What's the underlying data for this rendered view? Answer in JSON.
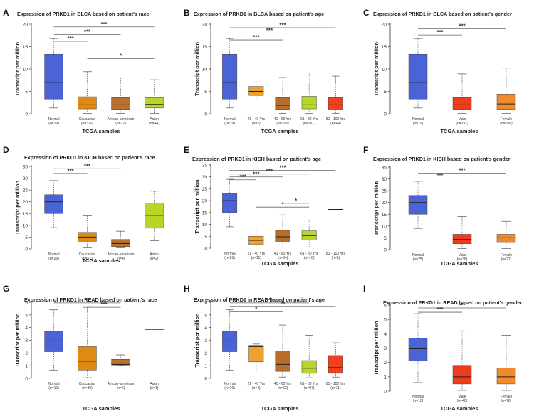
{
  "colors": {
    "normal": "#4a64d8",
    "caucasian": "#e08a16",
    "african_american": "#b8722d",
    "asian": "#b8d624",
    "age_21_40": "#f0a030",
    "age_41_60": "#b56e2c",
    "age_61_80": "#b5d62a",
    "age_81_100": "#f0401c",
    "male": "#f03c1e",
    "female": "#f08a2c",
    "whisker": "#555555",
    "median": "#222222",
    "signif": "#666666",
    "axis": "#333333"
  },
  "chart_data": [
    {
      "id": "A",
      "panel_label": "A",
      "type": "box",
      "title": "Expression of PRKD1 in BLCA based on patient's race",
      "xlabel": "TCGA samples",
      "ylabel": "Transcript per million",
      "ylim": [
        0,
        20
      ],
      "yticks": [
        "0",
        "5",
        "10",
        "15",
        "20"
      ],
      "categories": [
        {
          "name": "Normal",
          "n": "(n=19)",
          "color": "#4a64d8",
          "min": 1.3,
          "q1": 3.3,
          "median": 7.0,
          "q3": 13.3,
          "max": 16.8
        },
        {
          "name": "Caucasian",
          "n": "(n=320)",
          "color": "#e08a16",
          "min": 0.1,
          "q1": 1.1,
          "median": 2.0,
          "q3": 3.8,
          "max": 9.4
        },
        {
          "name": "African-american",
          "n": "(n=22)",
          "color": "#b8722d",
          "min": 0.1,
          "q1": 1.0,
          "median": 2.0,
          "q3": 3.6,
          "max": 8.0
        },
        {
          "name": "Asian",
          "n": "(n=44)",
          "color": "#b8d624",
          "min": 0.1,
          "q1": 1.3,
          "median": 2.1,
          "q3": 3.6,
          "max": 7.6
        }
      ],
      "significance": [
        {
          "from": 0,
          "to": 3,
          "label": "***",
          "y": 19.4
        },
        {
          "from": 0,
          "to": 2,
          "label": "***",
          "y": 17.7
        },
        {
          "from": 0,
          "to": 1,
          "label": "***",
          "y": 16.2
        },
        {
          "from": 1,
          "to": 3,
          "label": "*",
          "y": 12.3
        }
      ]
    },
    {
      "id": "B",
      "panel_label": "B",
      "type": "box",
      "title": "Expression of PRKD1 in BLCA based on patient's age",
      "xlabel": "TCGA samples",
      "ylabel": "Transcript per million",
      "ylim": [
        0,
        20
      ],
      "yticks": [
        "0",
        "5",
        "10",
        "15",
        "20"
      ],
      "categories": [
        {
          "name": "Normal",
          "n": "(n=19)",
          "color": "#4a64d8",
          "min": 1.3,
          "q1": 3.3,
          "median": 7.0,
          "q3": 13.3,
          "max": 16.8
        },
        {
          "name": "21 - 40 Yrs",
          "n": "(n=2)",
          "color": "#f0a030",
          "min": 3.1,
          "q1": 4.1,
          "median": 5.0,
          "q3": 6.1,
          "max": 7.1
        },
        {
          "name": "41 - 60 Yrs",
          "n": "(n=105)",
          "color": "#b56e2c",
          "min": 0.1,
          "q1": 1.0,
          "median": 1.9,
          "q3": 3.6,
          "max": 8.1
        },
        {
          "name": "61 - 80 Yrs",
          "n": "(n=251)",
          "color": "#b5d62a",
          "min": 0.1,
          "q1": 1.1,
          "median": 2.0,
          "q3": 3.9,
          "max": 9.1
        },
        {
          "name": "81 - 100 Yrs",
          "n": "(n=44)",
          "color": "#f0401c",
          "min": 0.1,
          "q1": 0.9,
          "median": 2.0,
          "q3": 3.6,
          "max": 8.4
        }
      ],
      "significance": [
        {
          "from": 0,
          "to": 4,
          "label": "***",
          "y": 19.2
        },
        {
          "from": 0,
          "to": 3,
          "label": "***",
          "y": 18.0
        },
        {
          "from": 0,
          "to": 2,
          "label": "***",
          "y": 16.5
        }
      ]
    },
    {
      "id": "C",
      "panel_label": "C",
      "type": "box",
      "title": "Expression of PRKD1 in BLCA based on patient's gender",
      "xlabel": "TCGA samples",
      "ylabel": "Transcript per million",
      "ylim": [
        0,
        20
      ],
      "yticks": [
        "0",
        "5",
        "10",
        "15",
        "20"
      ],
      "categories": [
        {
          "name": "Normal",
          "n": "(n=19)",
          "color": "#4a64d8",
          "min": 1.3,
          "q1": 3.3,
          "median": 7.0,
          "q3": 13.3,
          "max": 16.8
        },
        {
          "name": "Male",
          "n": "(n=297)",
          "color": "#f03c1e",
          "min": 0.1,
          "q1": 1.0,
          "median": 2.0,
          "q3": 3.6,
          "max": 8.9
        },
        {
          "name": "Female",
          "n": "(n=108)",
          "color": "#f08a2c",
          "min": 0.1,
          "q1": 1.0,
          "median": 2.2,
          "q3": 4.4,
          "max": 10.2
        }
      ],
      "significance": [
        {
          "from": 0,
          "to": 2,
          "label": "***",
          "y": 19.0
        },
        {
          "from": 0,
          "to": 1,
          "label": "***",
          "y": 17.6
        }
      ]
    },
    {
      "id": "D",
      "panel_label": "D",
      "type": "box",
      "title": "Expression of PRKD1 in KICH based on patient's race",
      "xlabel": "TCGA samples",
      "ylabel": "Transcript per million",
      "ylim": [
        0,
        35
      ],
      "yticks": [
        "0",
        "5",
        "10",
        "15",
        "20",
        "25",
        "30",
        "35"
      ],
      "categories": [
        {
          "name": "Normal",
          "n": "(n=25)",
          "color": "#4a64d8",
          "min": 9.0,
          "q1": 15.0,
          "median": 20.0,
          "q3": 23.0,
          "max": 29.0
        },
        {
          "name": "Caucasian",
          "n": "(n=57)",
          "color": "#e08a16",
          "min": 0.5,
          "q1": 3.2,
          "median": 5.0,
          "q3": 7.0,
          "max": 14.0
        },
        {
          "name": "African-american",
          "n": "(n=4)",
          "color": "#b8722d",
          "min": 0.5,
          "q1": 1.0,
          "median": 2.3,
          "q3": 4.0,
          "max": 7.5
        },
        {
          "name": "Asian",
          "n": "(n=2)",
          "color": "#b8d624",
          "min": 3.5,
          "q1": 8.8,
          "median": 14.2,
          "q3": 19.5,
          "max": 24.5
        }
      ],
      "significance": [
        {
          "from": 0,
          "to": 2,
          "label": "***",
          "y": 34.0
        },
        {
          "from": 0,
          "to": 1,
          "label": "***",
          "y": 32.0
        }
      ]
    },
    {
      "id": "E",
      "panel_label": "E",
      "type": "box",
      "title": "Expression of PRKD1 in KICH based on patient's age",
      "xlabel": "TCGA samples",
      "ylabel": "Transcript per million",
      "ylim": [
        0,
        35
      ],
      "yticks": [
        "0",
        "5",
        "10",
        "15",
        "20",
        "25",
        "30",
        "35"
      ],
      "categories": [
        {
          "name": "Normal",
          "n": "(n=25)",
          "color": "#4a64d8",
          "min": 9.0,
          "q1": 15.0,
          "median": 20.0,
          "q3": 23.0,
          "max": 29.0
        },
        {
          "name": "21 - 40 Yrs",
          "n": "(n=11)",
          "color": "#f0a030",
          "min": 0.5,
          "q1": 1.5,
          "median": 3.3,
          "q3": 5.0,
          "max": 8.5
        },
        {
          "name": "41 - 60 Yrs",
          "n": "(n=34)",
          "color": "#b56e2c",
          "min": 0.5,
          "q1": 2.5,
          "median": 4.8,
          "q3": 7.5,
          "max": 14.0
        },
        {
          "name": "61 - 80 Yrs",
          "n": "(n=16)",
          "color": "#b5d62a",
          "min": 0.5,
          "q1": 3.5,
          "median": 5.3,
          "q3": 7.3,
          "max": 11.8
        },
        {
          "name": "81 - 100 Yrs",
          "n": "(n=1)",
          "color": "#f0401c",
          "min": 16.3,
          "q1": 16.3,
          "median": 16.3,
          "q3": 16.3,
          "max": 16.3
        }
      ],
      "significance": [
        {
          "from": 0,
          "to": 4,
          "label": "***",
          "y": 32.8
        },
        {
          "from": 0,
          "to": 3,
          "label": "***",
          "y": 31.2
        },
        {
          "from": 0,
          "to": 2,
          "label": "***",
          "y": 30.0
        },
        {
          "from": 0,
          "to": 1,
          "label": "***",
          "y": 28.8
        },
        {
          "from": 1,
          "to": 3,
          "label": "*",
          "y": 17.3
        },
        {
          "from": 2,
          "to": 3,
          "label": "*",
          "y": 18.9
        }
      ]
    },
    {
      "id": "F",
      "panel_label": "F",
      "type": "box",
      "title": "Expression of PRKD1 in KICH based on patient's gender",
      "xlabel": "TCGA samples",
      "ylabel": "Transcript per million",
      "ylim": [
        0,
        35
      ],
      "yticks": [
        "0",
        "5",
        "10",
        "15",
        "20",
        "25",
        "30",
        "35"
      ],
      "categories": [
        {
          "name": "Normal",
          "n": "(n=25)",
          "color": "#4a64d8",
          "min": 9.0,
          "q1": 15.0,
          "median": 20.0,
          "q3": 23.0,
          "max": 29.0
        },
        {
          "name": "Male",
          "n": "(n=38)",
          "color": "#f03c1e",
          "min": 0.5,
          "q1": 2.5,
          "median": 4.3,
          "q3": 6.5,
          "max": 14.0
        },
        {
          "name": "Female",
          "n": "(n=27)",
          "color": "#f08a2c",
          "min": 0.5,
          "q1": 3.0,
          "median": 5.0,
          "q3": 6.5,
          "max": 12.0
        }
      ],
      "significance": [
        {
          "from": 0,
          "to": 2,
          "label": "***",
          "y": 32.4
        },
        {
          "from": 0,
          "to": 1,
          "label": "***",
          "y": 30.3
        }
      ]
    },
    {
      "id": "G",
      "panel_label": "G",
      "type": "box",
      "title": "Expression of PRKD1 in READ based on patient's race",
      "xlabel": "TCGA samples",
      "ylabel": "Transcript per million",
      "ylim": [
        0,
        6
      ],
      "yticks": [
        "0",
        "1",
        "2",
        "3",
        "4",
        "5",
        "6"
      ],
      "categories": [
        {
          "name": "Normal",
          "n": "(n=10)",
          "color": "#4a64d8",
          "min": 0.6,
          "q1": 2.1,
          "median": 2.95,
          "q3": 3.7,
          "max": 5.4
        },
        {
          "name": "Caucasian",
          "n": "(n=80)",
          "color": "#e08a16",
          "min": 0.05,
          "q1": 0.6,
          "median": 1.35,
          "q3": 2.5,
          "max": 5.6
        },
        {
          "name": "African-american",
          "n": "(n=6)",
          "color": "#b8722d",
          "min": 1.0,
          "q1": 1.05,
          "median": 1.1,
          "q3": 1.5,
          "max": 1.85
        },
        {
          "name": "Asian",
          "n": "(n=1)",
          "color": "#b8d624",
          "min": 3.9,
          "q1": 3.9,
          "median": 3.9,
          "q3": 3.9,
          "max": 3.9
        }
      ],
      "significance": [
        {
          "from": 0,
          "to": 2,
          "label": "**",
          "y": 5.95
        },
        {
          "from": 1,
          "to": 2,
          "label": "***",
          "y": 5.6
        }
      ]
    },
    {
      "id": "H",
      "panel_label": "H",
      "type": "box",
      "title": "Expression of PRKD1 in READ based on patient's age",
      "xlabel": "TCGA samples",
      "ylabel": "Transcript per million",
      "ylim": [
        0,
        6
      ],
      "yticks": [
        "0",
        "1",
        "2",
        "3",
        "4",
        "5",
        "6"
      ],
      "categories": [
        {
          "name": "Normal",
          "n": "(n=10)",
          "color": "#4a64d8",
          "min": 0.6,
          "q1": 2.1,
          "median": 2.95,
          "q3": 3.7,
          "max": 5.4
        },
        {
          "name": "21 - 40 Yrs",
          "n": "(n=4)",
          "color": "#f0a030",
          "min": 0.25,
          "q1": 1.3,
          "median": 2.5,
          "q3": 2.6,
          "max": 2.7
        },
        {
          "name": "41 - 60 Yrs",
          "n": "(n=63)",
          "color": "#b56e2c",
          "min": 0.1,
          "q1": 0.55,
          "median": 1.1,
          "q3": 2.15,
          "max": 4.2
        },
        {
          "name": "61 - 80 Yrs",
          "n": "(n=97)",
          "color": "#b5d62a",
          "min": 0.05,
          "q1": 0.4,
          "median": 0.8,
          "q3": 1.4,
          "max": 3.4
        },
        {
          "name": "81 - 100 Yrs",
          "n": "(n=11)",
          "color": "#f0401c",
          "min": 0.1,
          "q1": 0.4,
          "median": 0.85,
          "q3": 1.8,
          "max": 2.8
        }
      ],
      "significance": [
        {
          "from": 0,
          "to": 4,
          "label": "**",
          "y": 5.65
        },
        {
          "from": 0,
          "to": 3,
          "label": "***",
          "y": 5.95
        },
        {
          "from": 0,
          "to": 2,
          "label": "*",
          "y": 5.25
        }
      ]
    },
    {
      "id": "I",
      "panel_label": "I",
      "type": "box",
      "title": "Expression of PRKD1 in READ based on patient's gender",
      "xlabel": "TCGA samples",
      "ylabel": "Transcript per million",
      "ylim": [
        0,
        6
      ],
      "yticks": [
        "0",
        "1",
        "2",
        "3",
        "4",
        "5",
        "6"
      ],
      "categories": [
        {
          "name": "Normal",
          "n": "(n=10)",
          "color": "#4a64d8",
          "min": 0.6,
          "q1": 2.1,
          "median": 2.95,
          "q3": 3.7,
          "max": 5.4
        },
        {
          "name": "Male",
          "n": "(n=40)",
          "color": "#f03c1e",
          "min": 0.05,
          "q1": 0.5,
          "median": 1.0,
          "q3": 1.8,
          "max": 4.2
        },
        {
          "name": "Female",
          "n": "(n=76)",
          "color": "#f08a2c",
          "min": 0.05,
          "q1": 0.5,
          "median": 1.0,
          "q3": 1.6,
          "max": 3.9
        }
      ],
      "significance": [
        {
          "from": 0,
          "to": 2,
          "label": "***",
          "y": 5.8
        },
        {
          "from": 0,
          "to": 1,
          "label": "***",
          "y": 5.5
        }
      ]
    }
  ]
}
